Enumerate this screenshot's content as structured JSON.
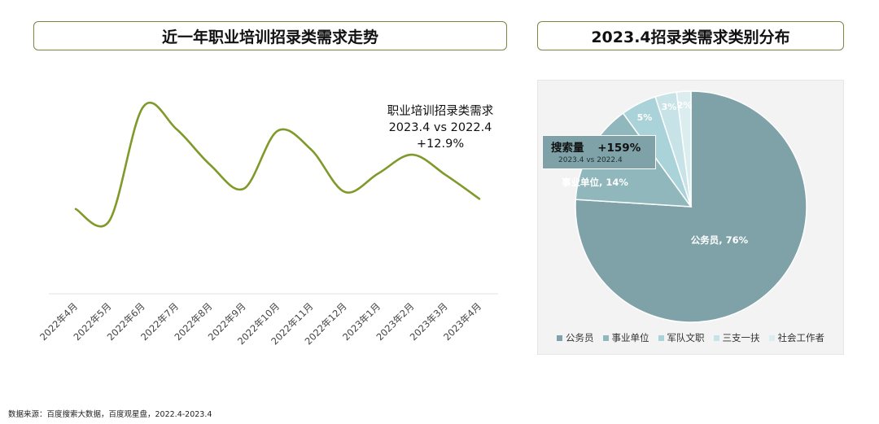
{
  "titles": {
    "left": "近一年职业培训招录类需求走势",
    "right": "2023.4招录类需求类别分布"
  },
  "annotation": {
    "line1": "职业培训招录类需求",
    "line2": "2023.4 vs 2022.4",
    "line3": "+12.9%"
  },
  "badge": {
    "label": "搜索量",
    "value": "+159%",
    "sub": "2023.4 vs 2022.4"
  },
  "source": "数据来源：百度搜索大数据，百度观星盘，2022.4-2023.4",
  "colors": {
    "line": "#7f9a2a",
    "title_border": "#7a8a45",
    "pie": [
      "#7ea2a7",
      "#8fb7bc",
      "#a9d3d8",
      "#c7e3e7",
      "#dcedef"
    ]
  },
  "chart_data": [
    {
      "type": "line",
      "title": "近一年职业培训招录类需求走势",
      "x": [
        "2022年4月",
        "2022年5月",
        "2022年6月",
        "2022年7月",
        "2022年8月",
        "2022年9月",
        "2022年10月",
        "2022年11月",
        "2022年12月",
        "2023年1月",
        "2023年2月",
        "2023年3月",
        "2023年4月"
      ],
      "series": [
        {
          "values": [
            20,
            13,
            80,
            67,
            46,
            32,
            66,
            55,
            30,
            41,
            52,
            40,
            26
          ]
        }
      ],
      "ylim": [
        -30,
        100
      ],
      "y_axis_visible": false,
      "grid": false
    },
    {
      "type": "pie",
      "title": "2023.4招录类需求类别分布",
      "labels": [
        "公务员",
        "事业单位",
        "军队文职",
        "三支一扶",
        "社会工作者"
      ],
      "values": [
        76,
        14,
        5,
        3,
        2
      ],
      "slice_labels": [
        "公务员, 76%",
        "事业单位, 14%",
        "5%",
        "3%",
        "2%"
      ],
      "legend_position": "bottom"
    }
  ]
}
